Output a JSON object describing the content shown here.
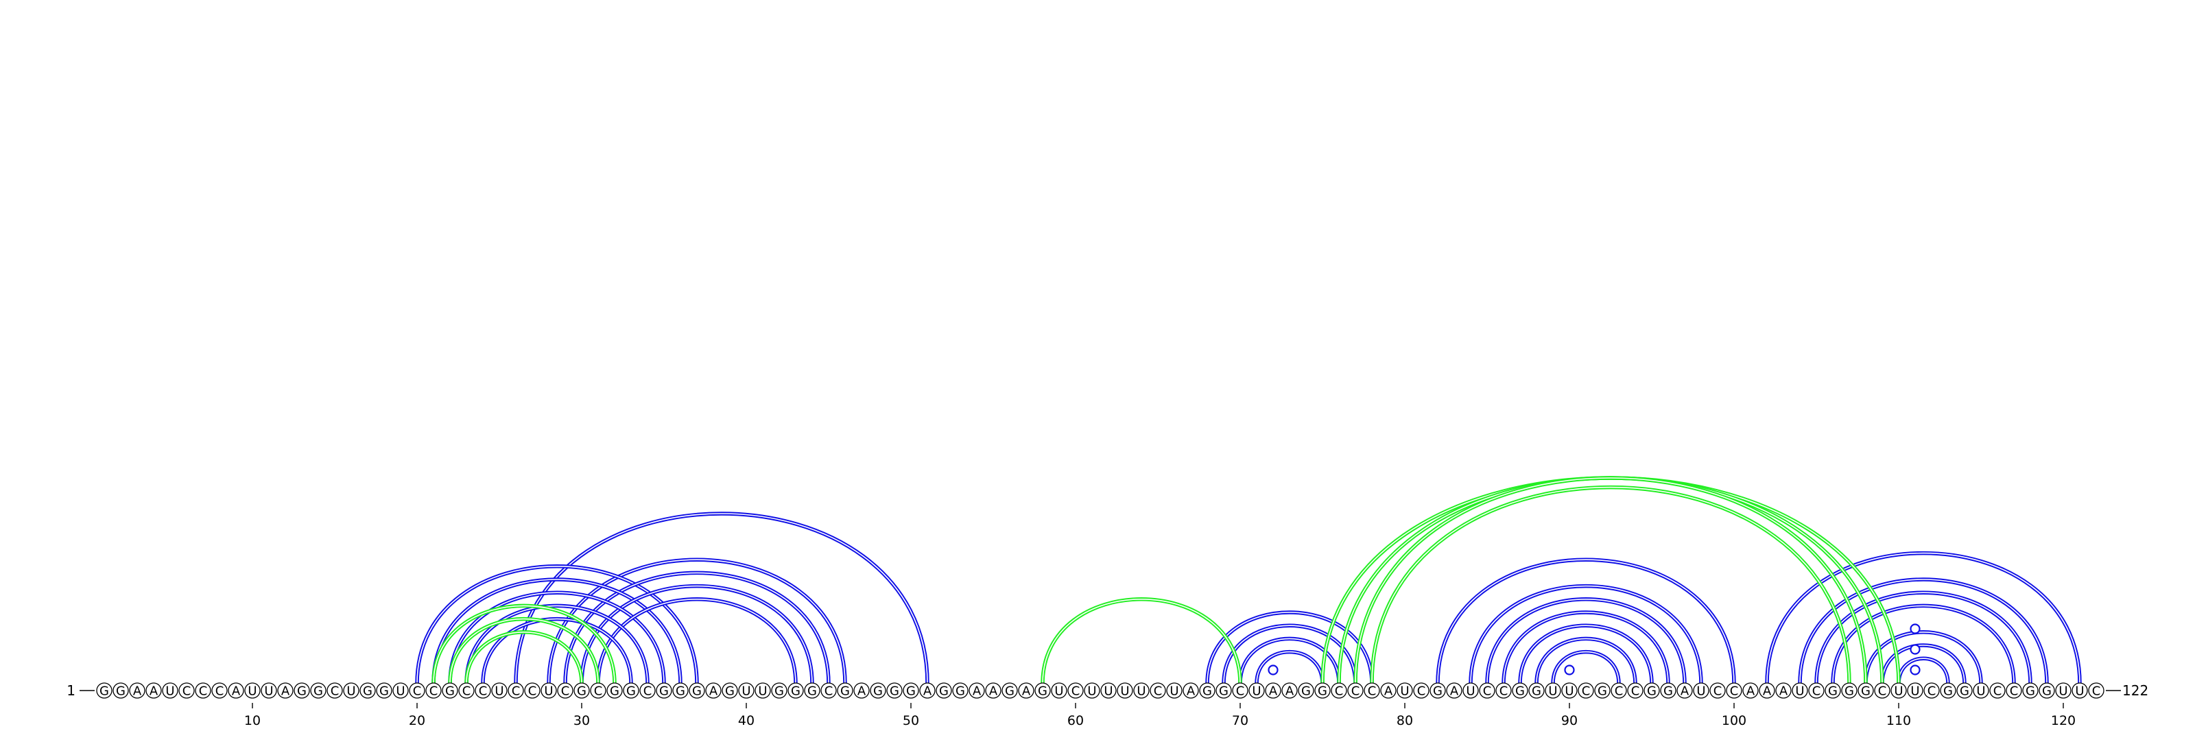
{
  "sequence": "GGAAUCCCAUUAGGCUGGUCCGCCUCCUCGCGGCGGGAGUUGGGCGAGGGAGGAAGAGUCUUUUCUAGGCUAAGGCCCAUCGAUCCGGUUCGCCGGAUCCAAAUCGGGCUUCGGUCCGGUUC",
  "start_label": "1",
  "end_label": "122",
  "tick_labels": [
    "10",
    "20",
    "30",
    "40",
    "50",
    "60",
    "70",
    "80",
    "90",
    "100",
    "110",
    "120"
  ],
  "tick_positions": [
    10,
    20,
    30,
    40,
    50,
    60,
    70,
    80,
    90,
    100,
    110,
    120
  ],
  "colors": {
    "blue_arc": "#1010e6",
    "green_arc": "#22ee22",
    "nucleotide_stroke": "#000000",
    "text": "#000000"
  },
  "blue_pairs": [
    [
      20,
      37
    ],
    [
      21,
      36
    ],
    [
      22,
      35
    ],
    [
      23,
      34
    ],
    [
      24,
      33
    ],
    [
      26,
      51
    ],
    [
      28,
      46
    ],
    [
      29,
      45
    ],
    [
      30,
      44
    ],
    [
      31,
      43
    ],
    [
      68,
      78
    ],
    [
      69,
      77
    ],
    [
      70,
      76
    ],
    [
      71,
      75
    ],
    [
      82,
      100
    ],
    [
      84,
      98
    ],
    [
      85,
      97
    ],
    [
      86,
      96
    ],
    [
      87,
      95
    ],
    [
      88,
      94
    ],
    [
      89,
      93
    ],
    [
      102,
      121
    ],
    [
      104,
      119
    ],
    [
      105,
      118
    ],
    [
      106,
      117
    ],
    [
      108,
      115
    ],
    [
      109,
      114
    ],
    [
      110,
      113
    ]
  ],
  "green_pairs": [
    [
      21,
      32
    ],
    [
      22,
      31
    ],
    [
      23,
      30
    ],
    [
      58,
      70
    ],
    [
      75,
      110
    ],
    [
      76,
      109
    ],
    [
      77,
      108
    ],
    [
      78,
      107
    ]
  ],
  "small_markers": [
    72,
    90,
    111,
    111,
    111
  ]
}
